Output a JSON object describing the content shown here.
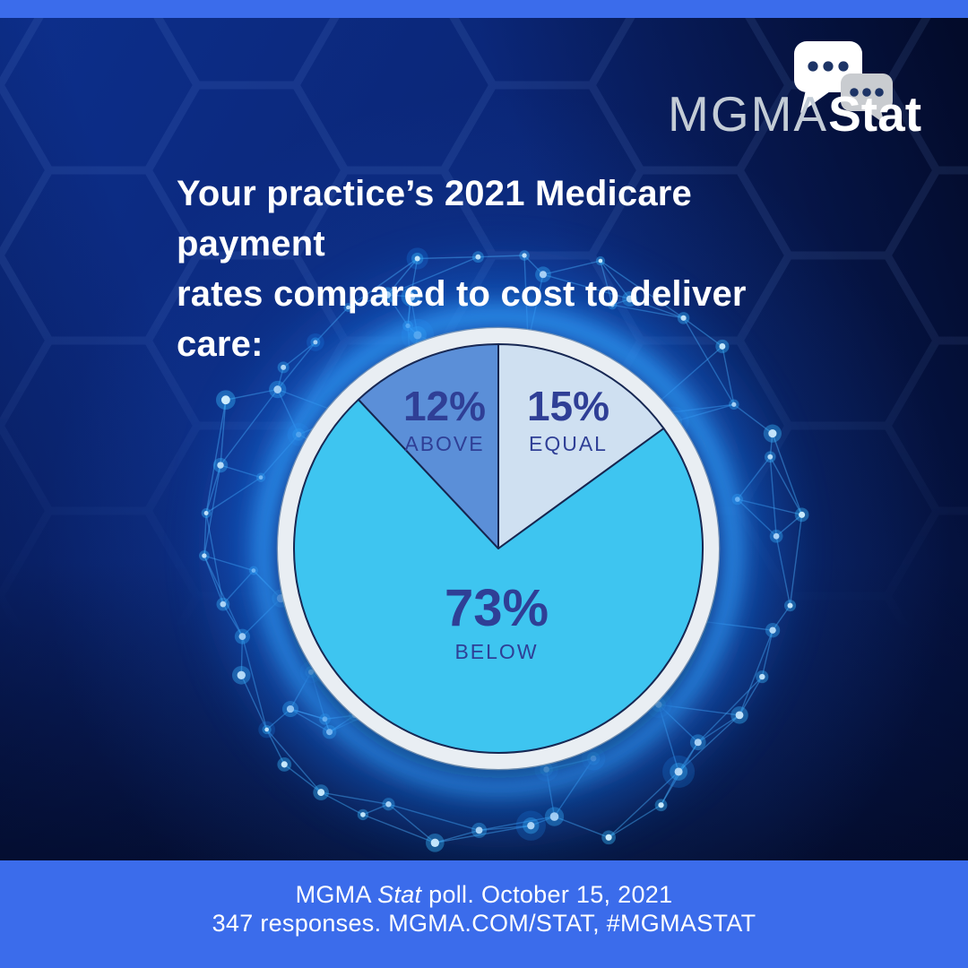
{
  "brand": {
    "name_light": "MGMA",
    "name_bold": "Stat",
    "icon": "chat-bubbles-icon"
  },
  "title": {
    "line1": "Your practice’s 2021 Medicare payment",
    "line2": "rates compared to cost to deliver care:"
  },
  "chart_data": {
    "type": "pie",
    "title": "Your practice’s 2021 Medicare payment rates compared to cost to deliver care:",
    "slices": [
      {
        "label": "EQUAL",
        "value": 15,
        "color": "#cfe0f1"
      },
      {
        "label": "BELOW",
        "value": 73,
        "color": "#3ec5f0"
      },
      {
        "label": "ABOVE",
        "value": 12,
        "color": "#5b8fd8"
      }
    ],
    "start_angle_deg": -90,
    "direction": "clockwise",
    "labels_inside_slices": true,
    "label_color": "#2f3f96",
    "stroke_color": "#16254f"
  },
  "labels": {
    "above": {
      "value": "12%",
      "name": "ABOVE"
    },
    "equal": {
      "value": "15%",
      "name": "EQUAL"
    },
    "below": {
      "value": "73%",
      "name": "BELOW"
    }
  },
  "footer": {
    "line1_brand": "MGMA ",
    "line1_italic": "Stat",
    "line1_rest": " poll. October 15, 2021",
    "line2": "347 responses. MGMA.COM/STAT, #MGMASTAT"
  },
  "colors": {
    "bar": "#3b6ceb",
    "background_deep": "#0a2064",
    "glow_ring": "#2f96f5",
    "pie_ring": "#e9eef3",
    "label_text": "#2f3f96",
    "title_text": "#ffffff",
    "logo_light": "#c3ccd6",
    "bubble_gray": "#c9ccd0",
    "bubble_dots": "#1d3466",
    "network_line": "#46b4ff"
  }
}
